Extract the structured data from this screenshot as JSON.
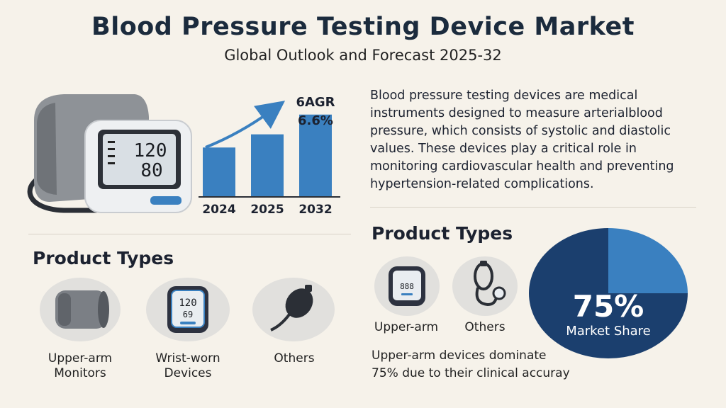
{
  "header": {
    "title": "Blood Pressure Testing Device Market",
    "subtitle": "Global Outlook and Forecast 2025-32"
  },
  "monitor": {
    "systolic": "120",
    "diastolic": "80"
  },
  "growth_chart": {
    "cagr_label": "6AGR",
    "cagr_value": "6.6%"
  },
  "chart_data": [
    {
      "type": "bar",
      "categories": [
        "2024",
        "2025",
        "2032"
      ],
      "values": [
        0.45,
        0.57,
        0.75
      ],
      "title": "",
      "xlabel": "",
      "ylabel": "",
      "grid": false,
      "bar_color": "#3a80c0",
      "annotation": "6AGR 6.6%"
    },
    {
      "type": "pie",
      "categories": [
        "Upper-arm",
        "Others"
      ],
      "values": [
        75,
        25
      ],
      "colors": [
        "#1b3f6e",
        "#3a80c0"
      ],
      "center_label": "75%",
      "center_sublabel": "Market Share"
    }
  ],
  "description": "Blood pressure testing devices are medical instruments designed to measure arterialblood pressure, which consists of systolic and diastolic values. These devices play a critical role in monitoring cardiovascular health and preventing hypertension-related complications.",
  "left_products": {
    "title": "Product Types",
    "items": [
      {
        "label_line1": "Upper-arm",
        "label_line2": "Monitors",
        "icon": "cuff-icon"
      },
      {
        "label_line1": "Wrist-worn",
        "label_line2": "Devices",
        "icon": "wrist-monitor-icon",
        "reading_top": "120",
        "reading_bottom": "69"
      },
      {
        "label_line1": "Others",
        "label_line2": "",
        "icon": "bulb-icon"
      }
    ]
  },
  "right_products": {
    "title": "Product Types",
    "items": [
      {
        "label": "Upper-arm",
        "icon": "wrist-monitor-icon",
        "reading": "888"
      },
      {
        "label": "Others",
        "icon": "stethoscope-icon"
      }
    ]
  },
  "pie": {
    "big": "75%",
    "small": "Market Share"
  },
  "note": {
    "line1": "Upper-arm devices dominate",
    "line2": "75% due to their clinical accuray"
  },
  "colors": {
    "background": "#f6f2ea",
    "accent_blue": "#3a80c0",
    "navy": "#1b3f6e"
  }
}
